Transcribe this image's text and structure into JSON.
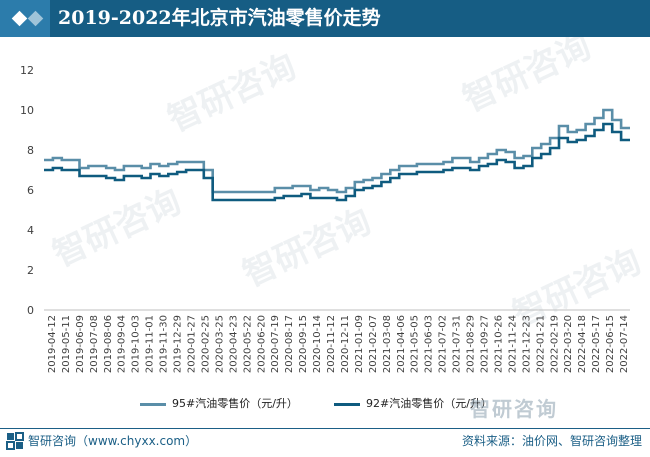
{
  "header": {
    "title": "2019-2022年北京市汽油零售价走势"
  },
  "footer": {
    "left": "智研咨询（www.chyxx.com）",
    "right": "资料来源：油价网、智研咨询整理"
  },
  "brand": {
    "name": "智研咨询"
  },
  "colors": {
    "s95": "#5a8ea8",
    "s92": "#0f5b7f",
    "header": "#165d84"
  },
  "chart_data": {
    "type": "line",
    "ylim": [
      0,
      12
    ],
    "yticks": [
      "0",
      "2",
      "4",
      "6",
      "8",
      "10",
      "12"
    ],
    "xtick_labels": [
      "2019-04-12",
      "2019-05-11",
      "2019-06-09",
      "2019-07-08",
      "2019-08-06",
      "2019-09-04",
      "2019-10-03",
      "2019-11-01",
      "2019-11-30",
      "2019-12-29",
      "2020-01-27",
      "2020-02-25",
      "2020-03-25",
      "2020-04-23",
      "2020-05-22",
      "2020-06-20",
      "2020-07-19",
      "2020-08-17",
      "2020-09-15",
      "2020-10-14",
      "2020-11-12",
      "2020-12-11",
      "2021-01-09",
      "2021-02-07",
      "2021-03-08",
      "2021-04-06",
      "2021-05-05",
      "2021-06-03",
      "2021-07-02",
      "2021-07-31",
      "2021-08-29",
      "2021-09-27",
      "2021-10-26",
      "2021-11-24",
      "2021-12-23",
      "2022-01-21",
      "2022-02-19",
      "2022-03-20",
      "2022-04-18",
      "2022-05-17",
      "2022-06-15",
      "2022-07-14"
    ],
    "series": [
      {
        "name": "95#汽油零售价（元/升）",
        "values": [
          7.5,
          7.6,
          7.5,
          7.5,
          7.1,
          7.2,
          7.2,
          7.1,
          7.0,
          7.2,
          7.2,
          7.1,
          7.3,
          7.2,
          7.3,
          7.4,
          7.4,
          7.4,
          7.0,
          5.9,
          5.9,
          5.9,
          5.9,
          5.9,
          5.9,
          5.9,
          6.1,
          6.1,
          6.2,
          6.2,
          6.0,
          6.1,
          6.0,
          5.9,
          6.1,
          6.4,
          6.5,
          6.6,
          6.8,
          7.0,
          7.2,
          7.2,
          7.3,
          7.3,
          7.3,
          7.4,
          7.6,
          7.6,
          7.4,
          7.6,
          7.8,
          8.0,
          7.9,
          7.6,
          7.7,
          8.1,
          8.3,
          8.6,
          9.2,
          8.9,
          9.0,
          9.3,
          9.6,
          10.0,
          9.5,
          9.1
        ]
      },
      {
        "name": "92#汽油零售价（元/升）",
        "values": [
          7.0,
          7.1,
          7.0,
          7.0,
          6.7,
          6.7,
          6.7,
          6.6,
          6.5,
          6.7,
          6.7,
          6.6,
          6.8,
          6.7,
          6.8,
          6.9,
          7.0,
          7.0,
          6.6,
          5.5,
          5.5,
          5.5,
          5.5,
          5.5,
          5.5,
          5.5,
          5.6,
          5.7,
          5.7,
          5.8,
          5.6,
          5.6,
          5.6,
          5.5,
          5.7,
          6.0,
          6.1,
          6.2,
          6.4,
          6.6,
          6.8,
          6.8,
          6.9,
          6.9,
          6.9,
          7.0,
          7.1,
          7.1,
          7.0,
          7.2,
          7.3,
          7.5,
          7.4,
          7.1,
          7.2,
          7.6,
          7.8,
          8.1,
          8.6,
          8.4,
          8.5,
          8.7,
          9.0,
          9.3,
          8.9,
          8.5
        ]
      }
    ],
    "legend_position": "bottom",
    "grid": false
  }
}
